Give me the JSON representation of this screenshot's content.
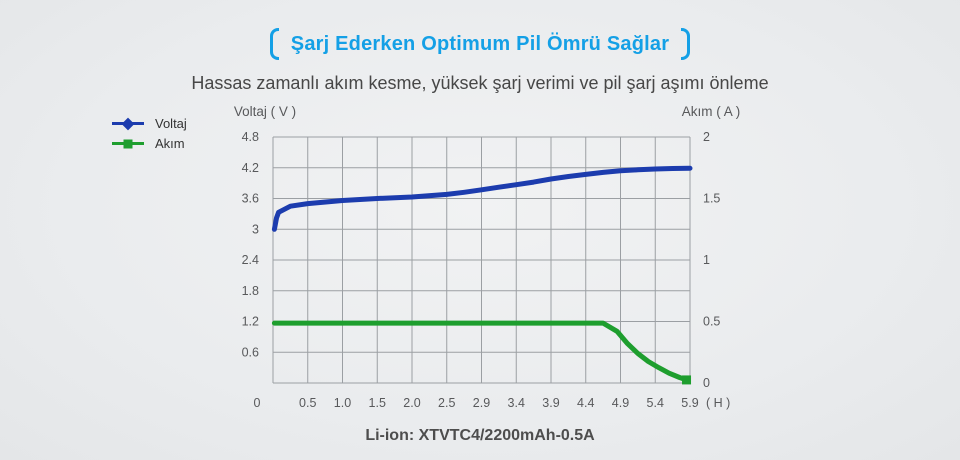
{
  "header": {
    "title": "Şarj Ederken Optimum Pil Ömrü Sağlar",
    "title_color": "#14a0e6",
    "subtitle": "Hassas zamanlı akım kesme, yüksek şarj verimi ve pil şarj aşımı önleme"
  },
  "legend": {
    "items": [
      {
        "label": "Voltaj",
        "color": "#1c3cae",
        "marker": "diamond"
      },
      {
        "label": "Akım",
        "color": "#1e9e2e",
        "marker": "square"
      }
    ]
  },
  "chart_data": {
    "type": "line",
    "grid": true,
    "grid_color": "#9b9fa3",
    "x_axis": {
      "tick_labels": [
        "0",
        "0.5",
        "1.0",
        "1.5",
        "2.0",
        "2.5",
        "2.9",
        "3.4",
        "3.9",
        "4.4",
        "4.9",
        "5.4",
        "5.9"
      ],
      "tick_values": [
        0,
        0.5,
        1.0,
        1.5,
        2.0,
        2.5,
        2.9,
        3.4,
        3.9,
        4.4,
        4.9,
        5.4,
        5.9
      ],
      "unit_label": "( H )"
    },
    "left_axis": {
      "label": "Voltaj ( V )",
      "tick_values": [
        4.8,
        4.2,
        3.6,
        3,
        2.4,
        1.8,
        1.2,
        0.6
      ],
      "tick_labels": [
        "4.8",
        "4.2",
        "3.6",
        "3",
        "2.4",
        "1.8",
        "1.2",
        "0.6"
      ],
      "range": [
        0,
        4.8
      ],
      "grid_step": 0.6
    },
    "right_axis": {
      "label": "Akım ( A )",
      "tick_values": [
        2,
        1.5,
        1,
        0.5,
        0
      ],
      "tick_labels": [
        "2",
        "1.5",
        "1",
        "0.5",
        "0"
      ],
      "range": [
        0,
        2
      ]
    },
    "series": [
      {
        "name": "Voltaj",
        "axis": "left",
        "color": "#1c3cae",
        "points": [
          [
            0.02,
            3.0
          ],
          [
            0.05,
            3.22
          ],
          [
            0.08,
            3.33
          ],
          [
            0.25,
            3.45
          ],
          [
            0.5,
            3.5
          ],
          [
            1.0,
            3.56
          ],
          [
            1.5,
            3.6
          ],
          [
            2.0,
            3.63
          ],
          [
            2.5,
            3.68
          ],
          [
            2.7,
            3.72
          ],
          [
            2.9,
            3.77
          ],
          [
            3.15,
            3.82
          ],
          [
            3.4,
            3.87
          ],
          [
            3.65,
            3.92
          ],
          [
            3.9,
            3.98
          ],
          [
            4.15,
            4.03
          ],
          [
            4.4,
            4.07
          ],
          [
            4.65,
            4.11
          ],
          [
            4.9,
            4.14
          ],
          [
            5.15,
            4.16
          ],
          [
            5.4,
            4.175
          ],
          [
            5.65,
            4.185
          ],
          [
            5.9,
            4.19
          ]
        ]
      },
      {
        "name": "Akım",
        "axis": "right",
        "color": "#1e9e2e",
        "end_marker": "square",
        "points": [
          [
            0.02,
            0.487
          ],
          [
            4.65,
            0.487
          ],
          [
            4.85,
            0.42
          ],
          [
            5.0,
            0.32
          ],
          [
            5.15,
            0.24
          ],
          [
            5.3,
            0.175
          ],
          [
            5.45,
            0.125
          ],
          [
            5.6,
            0.08
          ],
          [
            5.75,
            0.045
          ],
          [
            5.85,
            0.025
          ]
        ]
      }
    ]
  },
  "footer": {
    "caption": "Li-ion: XTVTC4/2200mAh-0.5A"
  }
}
